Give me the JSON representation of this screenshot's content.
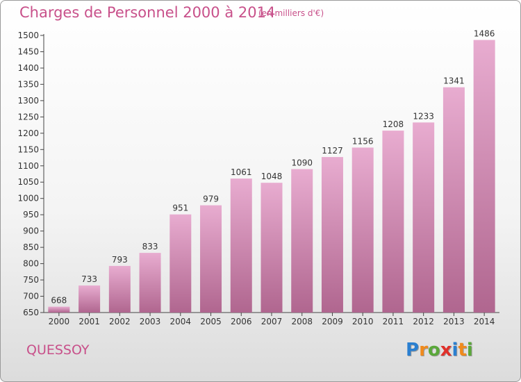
{
  "title": "Charges de Personnel 2000 à 2014",
  "subtitle": "(en milliers d'€)",
  "place": "QUESSOY",
  "logo": {
    "text": "Proxiti",
    "letters": [
      {
        "ch": "P",
        "color": "#2a7fd0"
      },
      {
        "ch": "r",
        "color": "#f08a1c"
      },
      {
        "ch": "o",
        "color": "#5aa83a"
      },
      {
        "ch": "x",
        "color": "#e0302a"
      },
      {
        "ch": "i",
        "color": "#2a7fd0"
      },
      {
        "ch": "t",
        "color": "#f08a1c"
      },
      {
        "ch": "i",
        "color": "#5aa83a"
      }
    ]
  },
  "chart_data": {
    "type": "bar",
    "categories": [
      "2000",
      "2001",
      "2002",
      "2003",
      "2004",
      "2005",
      "2006",
      "2007",
      "2008",
      "2009",
      "2010",
      "2011",
      "2012",
      "2013",
      "2014"
    ],
    "values": [
      668,
      733,
      793,
      833,
      951,
      979,
      1061,
      1048,
      1090,
      1127,
      1156,
      1208,
      1233,
      1341,
      1486
    ],
    "ylim": [
      650,
      1500
    ],
    "yticks": [
      650,
      700,
      750,
      800,
      850,
      900,
      950,
      1000,
      1050,
      1100,
      1150,
      1200,
      1250,
      1300,
      1350,
      1400,
      1450,
      1500
    ],
    "grid": false,
    "bar_color_top": "#e8acd0",
    "bar_color_bottom": "#b0668f"
  }
}
